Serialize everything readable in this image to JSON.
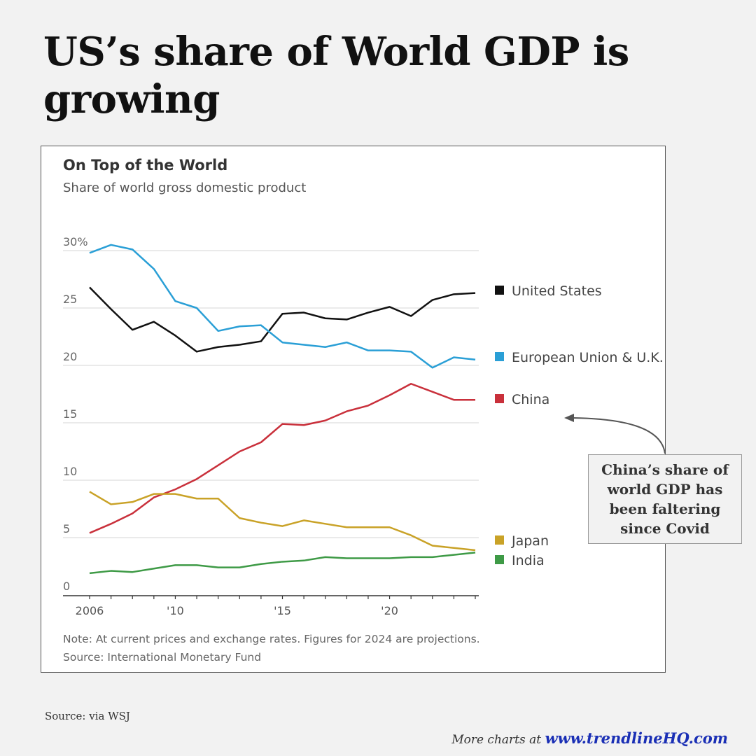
{
  "headline": "US’s share of World GDP is growing",
  "source": "Source: via WSJ",
  "footer": {
    "prefix": "More charts at ",
    "link": "www.trendlineHQ.com"
  },
  "annotation": "China’s share of world GDP  has been faltering since Covid",
  "chart_data": {
    "type": "line",
    "title": "On Top of the World",
    "subtitle": "Share of world gross domestic product",
    "note": "Note: At current prices and exchange rates. Figures for 2024 are projections.",
    "source": "Source: International Monetary Fund",
    "ylim": [
      0,
      30
    ],
    "yticks": [
      0,
      5,
      10,
      15,
      20,
      25,
      30
    ],
    "ytick_labels": [
      "0",
      "5",
      "10",
      "15",
      "20",
      "25",
      "30%"
    ],
    "xlim": [
      2006,
      2024
    ],
    "xticks": [
      2006,
      2010,
      2015,
      2020
    ],
    "xtick_labels": [
      "2006",
      "'10",
      "'15",
      "'20"
    ],
    "grid": true,
    "legend": "right (end labels)",
    "x": [
      2006,
      2007,
      2008,
      2009,
      2010,
      2011,
      2012,
      2013,
      2014,
      2015,
      2016,
      2017,
      2018,
      2019,
      2020,
      2021,
      2022,
      2023,
      2024
    ],
    "series": [
      {
        "name": "United States",
        "color": "#111111",
        "values": [
          26.8,
          24.9,
          23.1,
          23.8,
          22.6,
          21.2,
          21.6,
          21.8,
          22.1,
          24.5,
          24.6,
          24.1,
          24.0,
          24.6,
          25.1,
          24.3,
          25.7,
          26.2,
          26.3
        ]
      },
      {
        "name": "European Union & U.K.",
        "color": "#2a9fd6",
        "values": [
          29.8,
          30.5,
          30.1,
          28.4,
          25.6,
          25.0,
          23.0,
          23.4,
          23.5,
          22.0,
          21.8,
          21.6,
          22.0,
          21.3,
          21.3,
          21.2,
          19.8,
          20.7,
          20.5
        ]
      },
      {
        "name": "China",
        "color": "#c9303b",
        "values": [
          5.4,
          6.2,
          7.1,
          8.5,
          9.2,
          10.1,
          11.3,
          12.5,
          13.3,
          14.9,
          14.8,
          15.2,
          16.0,
          16.5,
          17.4,
          18.4,
          17.7,
          17.0,
          17.0
        ]
      },
      {
        "name": "Japan",
        "color": "#c9a227",
        "values": [
          9.0,
          7.9,
          8.1,
          8.8,
          8.8,
          8.4,
          8.4,
          6.7,
          6.3,
          6.0,
          6.5,
          6.2,
          5.9,
          5.9,
          5.9,
          5.2,
          4.3,
          4.1,
          3.9
        ]
      },
      {
        "name": "India",
        "color": "#3e9a46",
        "values": [
          1.9,
          2.1,
          2.0,
          2.3,
          2.6,
          2.6,
          2.4,
          2.4,
          2.7,
          2.9,
          3.0,
          3.3,
          3.2,
          3.2,
          3.2,
          3.3,
          3.3,
          3.5,
          3.7
        ]
      }
    ]
  }
}
